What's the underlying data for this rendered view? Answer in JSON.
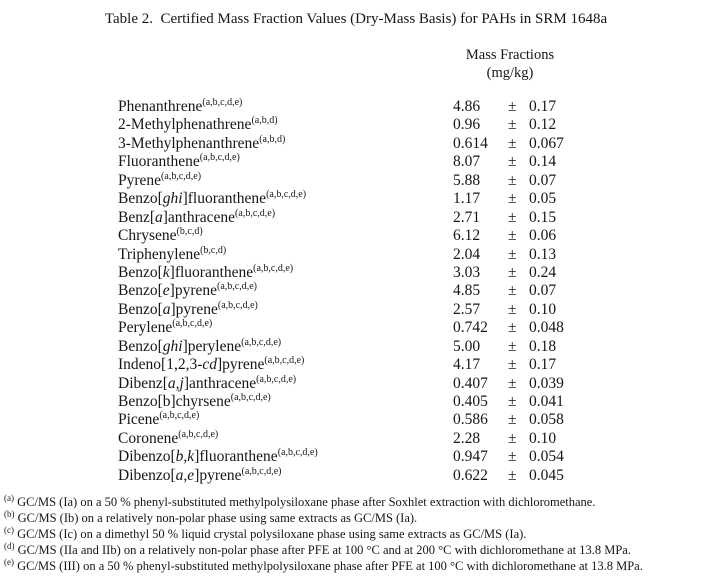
{
  "page": {
    "title": "Table 2.  Certified Mass Fraction Values (Dry-Mass Basis) for PAHs in SRM 1648a"
  },
  "column_header": {
    "line1": "Mass Fractions",
    "line2": "(mg/kg)"
  },
  "table": {
    "pm_symbol": "±",
    "rows": [
      {
        "name": [
          {
            "text": "Phenanthrene",
            "italic": false
          }
        ],
        "sup": "(a,b,c,d,e)",
        "value": "4.86",
        "uncertainty": "0.17"
      },
      {
        "name": [
          {
            "text": "2-Methylphenathrene",
            "italic": false
          }
        ],
        "sup": "(a,b,d)",
        "value": "0.96",
        "uncertainty": "0.12"
      },
      {
        "name": [
          {
            "text": "3-Methylphenanthrene",
            "italic": false
          }
        ],
        "sup": "(a,b,d)",
        "value": "0.614",
        "uncertainty": "0.067"
      },
      {
        "name": [
          {
            "text": "Fluoranthene",
            "italic": false
          }
        ],
        "sup": "(a,b,c,d,e)",
        "value": "8.07",
        "uncertainty": "0.14"
      },
      {
        "name": [
          {
            "text": "Pyrene",
            "italic": false
          }
        ],
        "sup": "(a,b,c,d,e)",
        "value": "5.88",
        "uncertainty": "0.07"
      },
      {
        "name": [
          {
            "text": "Benzo[",
            "italic": false
          },
          {
            "text": "ghi",
            "italic": true
          },
          {
            "text": "]fluoranthene",
            "italic": false
          }
        ],
        "sup": "(a,b,c,d,e)",
        "value": "1.17",
        "uncertainty": "0.05"
      },
      {
        "name": [
          {
            "text": "Benz[",
            "italic": false
          },
          {
            "text": "a",
            "italic": true
          },
          {
            "text": "]anthracene",
            "italic": false
          }
        ],
        "sup": "(a,b,c,d,e)",
        "value": "2.71",
        "uncertainty": "0.15"
      },
      {
        "name": [
          {
            "text": "Chrysene",
            "italic": false
          }
        ],
        "sup": "(b,c,d)",
        "value": "6.12",
        "uncertainty": "0.06"
      },
      {
        "name": [
          {
            "text": "Triphenylene",
            "italic": false
          }
        ],
        "sup": "(b,c,d)",
        "value": "2.04",
        "uncertainty": "0.13"
      },
      {
        "name": [
          {
            "text": "Benzo[",
            "italic": false
          },
          {
            "text": "k",
            "italic": true
          },
          {
            "text": "]fluoranthene",
            "italic": false
          }
        ],
        "sup": "(a,b,c,d,e)",
        "value": "3.03",
        "uncertainty": "0.24"
      },
      {
        "name": [
          {
            "text": "Benzo[",
            "italic": false
          },
          {
            "text": "e",
            "italic": true
          },
          {
            "text": "]pyrene",
            "italic": false
          }
        ],
        "sup": "(a,b,c,d,e)",
        "value": "4.85",
        "uncertainty": "0.07"
      },
      {
        "name": [
          {
            "text": "Benzo[",
            "italic": false
          },
          {
            "text": "a",
            "italic": true
          },
          {
            "text": "]pyrene",
            "italic": false
          }
        ],
        "sup": "(a,b,c,d,e)",
        "value": "2.57",
        "uncertainty": "0.10"
      },
      {
        "name": [
          {
            "text": "Perylene",
            "italic": false
          }
        ],
        "sup": "(a,b,c,d,e)",
        "value": "0.742",
        "uncertainty": "0.048"
      },
      {
        "name": [
          {
            "text": "Benzo[",
            "italic": false
          },
          {
            "text": "ghi",
            "italic": true
          },
          {
            "text": "]perylene",
            "italic": false
          }
        ],
        "sup": "(a,b,c,d,e)",
        "value": "5.00",
        "uncertainty": "0.18"
      },
      {
        "name": [
          {
            "text": "Indeno[1,2,3-",
            "italic": false
          },
          {
            "text": "cd",
            "italic": true
          },
          {
            "text": "]pyrene",
            "italic": false
          }
        ],
        "sup": "(a,b,c,d,e)",
        "value": "4.17",
        "uncertainty": "0.17"
      },
      {
        "name": [
          {
            "text": "Dibenz[",
            "italic": false
          },
          {
            "text": "a,j",
            "italic": true
          },
          {
            "text": "]anthracene",
            "italic": false
          }
        ],
        "sup": "(a,b,c,d,e)",
        "value": "0.407",
        "uncertainty": "0.039"
      },
      {
        "name": [
          {
            "text": "Benzo[b]chyrsene",
            "italic": false
          }
        ],
        "sup": "(a,b,c,d,e)",
        "value": "0.405",
        "uncertainty": "0.041"
      },
      {
        "name": [
          {
            "text": "Picene",
            "italic": false
          }
        ],
        "sup": "(a,b,c,d,e)",
        "value": "0.586",
        "uncertainty": "0.058"
      },
      {
        "name": [
          {
            "text": "Coronene",
            "italic": false
          }
        ],
        "sup": "(a,b,c,d,e)",
        "value": "2.28",
        "uncertainty": "0.10"
      },
      {
        "name": [
          {
            "text": "Dibenzo[",
            "italic": false
          },
          {
            "text": "b,k",
            "italic": true
          },
          {
            "text": "]fluoranthene",
            "italic": false
          }
        ],
        "sup": "(a,b,c,d,e)",
        "value": "0.947",
        "uncertainty": "0.054"
      },
      {
        "name": [
          {
            "text": "Dibenzo[",
            "italic": false
          },
          {
            "text": "a,e",
            "italic": true
          },
          {
            "text": "]pyrene",
            "italic": false
          }
        ],
        "sup": "(a,b,c,d,e)",
        "value": "0.622",
        "uncertainty": "0.045"
      }
    ]
  },
  "footnotes": [
    {
      "marker": "(a)",
      "text": "GC/MS (Ia) on a 50 % phenyl-substituted methylpolysiloxane phase after Soxhlet extraction with dichloromethane."
    },
    {
      "marker": "(b)",
      "text": "GC/MS (Ib) on a relatively non-polar phase using same extracts as GC/MS (Ia)."
    },
    {
      "marker": "(c)",
      "text": "GC/MS (Ic) on a dimethyl 50 % liquid crystal polysiloxane phase using same extracts as GC/MS (Ia)."
    },
    {
      "marker": "(d)",
      "text": "GC/MS (IIa and IIb) on a relatively non-polar phase after PFE at 100 °C and at 200 °C with dichloromethane at 13.8 MPa."
    },
    {
      "marker": "(e)",
      "text": "GC/MS (III) on a 50 % phenyl-substituted methylpolysiloxane phase after PFE at 100 °C with dichloromethane at 13.8 MPa."
    }
  ]
}
